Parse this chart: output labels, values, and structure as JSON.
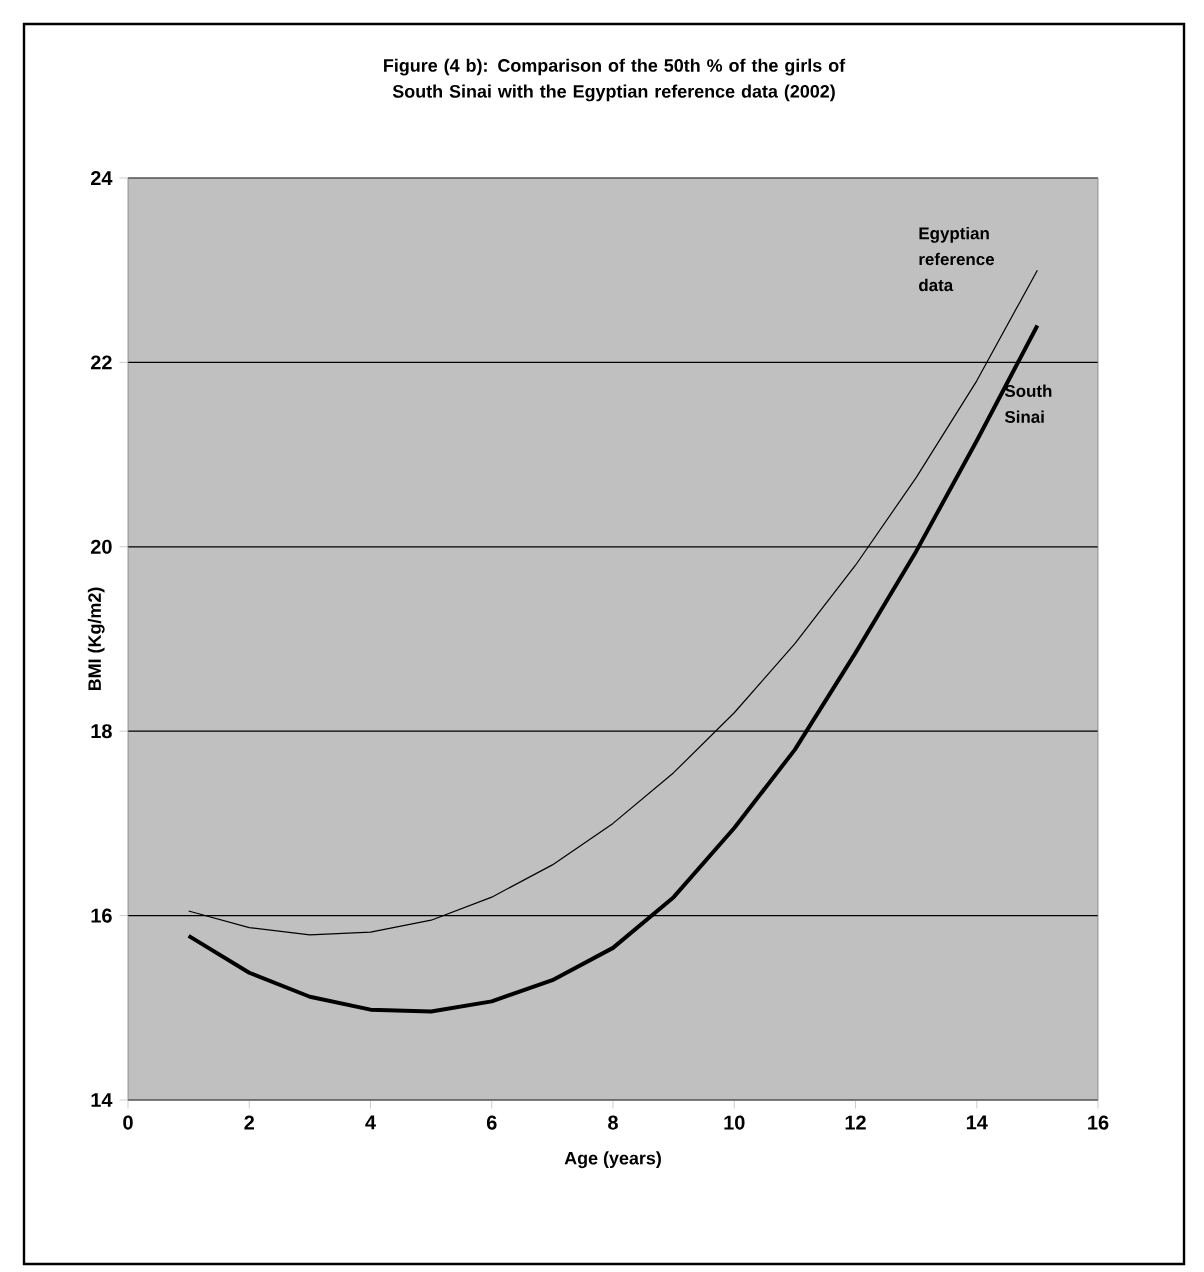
{
  "chart_data": {
    "type": "line",
    "title": "Figure (4 b): Comparison of the 50th % of the girls of South Sinai with the Egyptian reference data (2002)",
    "xlabel": "Age (years)",
    "ylabel": "BMI (Kg/m2)",
    "x": [
      1,
      2,
      3,
      4,
      5,
      6,
      7,
      8,
      9,
      10,
      11,
      12,
      13,
      14,
      15
    ],
    "series": [
      {
        "name": "Egyptian reference data",
        "color": "#000000",
        "values": [
          16.05,
          15.87,
          15.79,
          15.82,
          15.95,
          16.2,
          16.55,
          17.0,
          17.55,
          18.2,
          18.95,
          19.8,
          20.75,
          21.8,
          23.0
        ]
      },
      {
        "name": "South Sinai",
        "color": "#000000",
        "values": [
          15.78,
          15.38,
          15.12,
          14.98,
          14.96,
          15.07,
          15.3,
          15.65,
          16.2,
          16.95,
          17.8,
          18.85,
          19.95,
          21.15,
          22.4
        ]
      }
    ],
    "xlim": [
      0,
      16
    ],
    "ylim": [
      14,
      24
    ],
    "xticks": [
      0,
      2,
      4,
      6,
      8,
      10,
      12,
      14,
      16
    ],
    "yticks": [
      14,
      16,
      18,
      20,
      22,
      24
    ],
    "grid": "y",
    "marker": "none",
    "line_style": "solid"
  }
}
